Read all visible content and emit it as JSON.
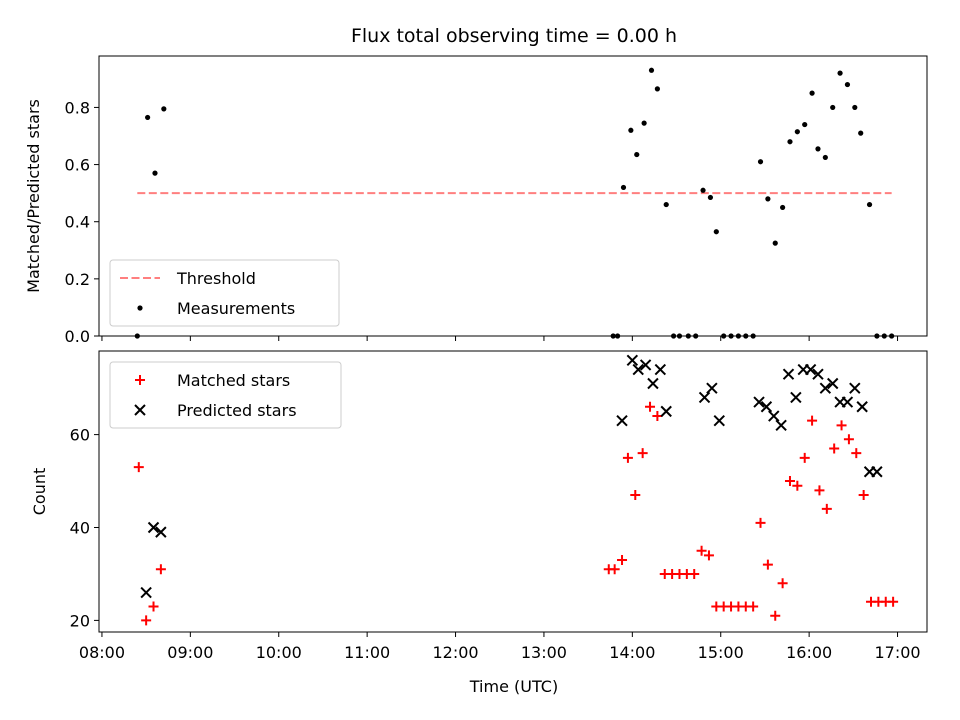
{
  "figure": {
    "title": "Flux total observing time = 0.00 h",
    "xlabel": "Time (UTC)"
  },
  "colors": {
    "threshold": "#ff7f7f",
    "measurement": "#000000",
    "matched": "#ff0000",
    "predicted": "#000000"
  },
  "chart_data": [
    {
      "type": "scatter",
      "ylabel": "Matched/Predicted stars",
      "xlim": [
        "07:58",
        "17:20"
      ],
      "ylim": [
        0,
        0.98
      ],
      "x_ticks": [
        "08:00",
        "09:00",
        "10:00",
        "11:00",
        "12:00",
        "13:00",
        "14:00",
        "15:00",
        "16:00",
        "17:00"
      ],
      "y_ticks": [
        "0.0",
        "0.2",
        "0.4",
        "0.6",
        "0.8"
      ],
      "legend": {
        "position": "bottom-left",
        "entries": [
          "Threshold",
          "Measurements"
        ]
      },
      "threshold": {
        "name": "Threshold",
        "value": 0.5,
        "x_start": "08:24",
        "x_end": "16:56",
        "style": "dashed"
      },
      "series": [
        {
          "name": "Measurements",
          "marker": "dot",
          "x": [
            "08:24",
            "08:31",
            "08:36",
            "08:42",
            "13:47",
            "13:50",
            "13:54",
            "13:59",
            "14:03",
            "14:08",
            "14:13",
            "14:17",
            "14:23",
            "14:28",
            "14:32",
            "14:38",
            "14:43",
            "14:48",
            "14:53",
            "14:57",
            "15:02",
            "15:07",
            "15:12",
            "15:17",
            "15:22",
            "15:27",
            "15:32",
            "15:37",
            "15:42",
            "15:47",
            "15:52",
            "15:57",
            "16:02",
            "16:06",
            "16:11",
            "16:16",
            "16:21",
            "16:26",
            "16:31",
            "16:35",
            "16:41",
            "16:46",
            "16:51",
            "16:56"
          ],
          "y": [
            0.0,
            0.765,
            0.57,
            0.795,
            0.0,
            0.0,
            0.52,
            0.72,
            0.635,
            0.745,
            0.93,
            0.865,
            0.46,
            0.0,
            0.0,
            0.0,
            0.0,
            0.51,
            0.485,
            0.365,
            0.0,
            0.0,
            0.0,
            0.0,
            0.0,
            0.61,
            0.48,
            0.325,
            0.45,
            0.68,
            0.715,
            0.74,
            0.85,
            0.655,
            0.625,
            0.8,
            0.92,
            0.88,
            0.8,
            0.71,
            0.46,
            0.0,
            0.0,
            0.0
          ]
        }
      ]
    },
    {
      "type": "scatter",
      "ylabel": "Count",
      "xlim": [
        "07:58",
        "17:20"
      ],
      "ylim": [
        17.5,
        78
      ],
      "x_ticks": [
        "08:00",
        "09:00",
        "10:00",
        "11:00",
        "12:00",
        "13:00",
        "14:00",
        "15:00",
        "16:00",
        "17:00"
      ],
      "y_ticks": [
        "20",
        "40",
        "60"
      ],
      "legend": {
        "position": "top-left",
        "entries": [
          "Matched stars",
          "Predicted stars"
        ]
      },
      "series": [
        {
          "name": "Matched stars",
          "marker": "plus",
          "x": [
            "08:25",
            "08:30",
            "08:35",
            "08:40",
            "13:44",
            "13:48",
            "13:53",
            "13:57",
            "14:02",
            "14:07",
            "14:12",
            "14:17",
            "14:22",
            "14:27",
            "14:32",
            "14:37",
            "14:42",
            "14:47",
            "14:52",
            "14:57",
            "15:02",
            "15:07",
            "15:12",
            "15:17",
            "15:22",
            "15:27",
            "15:32",
            "15:37",
            "15:42",
            "15:47",
            "15:52",
            "15:57",
            "16:02",
            "16:07",
            "16:12",
            "16:17",
            "16:22",
            "16:27",
            "16:32",
            "16:37",
            "16:42",
            "16:47",
            "16:52",
            "16:57"
          ],
          "y": [
            53,
            20,
            23,
            31,
            31,
            31,
            33,
            55,
            47,
            56,
            66,
            64,
            30,
            30,
            30,
            30,
            30,
            35,
            34,
            23,
            23,
            23,
            23,
            23,
            23,
            41,
            32,
            21,
            28,
            50,
            49,
            55,
            63,
            48,
            44,
            57,
            62,
            59,
            56,
            47,
            24,
            24,
            24,
            24
          ]
        },
        {
          "name": "Predicted stars",
          "marker": "x",
          "x": [
            "08:30",
            "08:35",
            "08:40",
            "13:53",
            "14:00",
            "14:04",
            "14:09",
            "14:14",
            "14:19",
            "14:23",
            "14:49",
            "14:54",
            "14:59",
            "15:26",
            "15:31",
            "15:36",
            "15:41",
            "15:46",
            "15:51",
            "15:56",
            "16:01",
            "16:06",
            "16:11",
            "16:16",
            "16:21",
            "16:26",
            "16:31",
            "16:36",
            "16:41",
            "16:46"
          ],
          "y": [
            26,
            40,
            39,
            63,
            76,
            74,
            75,
            71,
            74,
            65,
            68,
            70,
            63,
            67,
            66,
            64,
            62,
            73,
            68,
            74,
            74,
            73,
            70,
            71,
            67,
            67,
            70,
            66,
            52,
            52
          ]
        }
      ]
    }
  ]
}
